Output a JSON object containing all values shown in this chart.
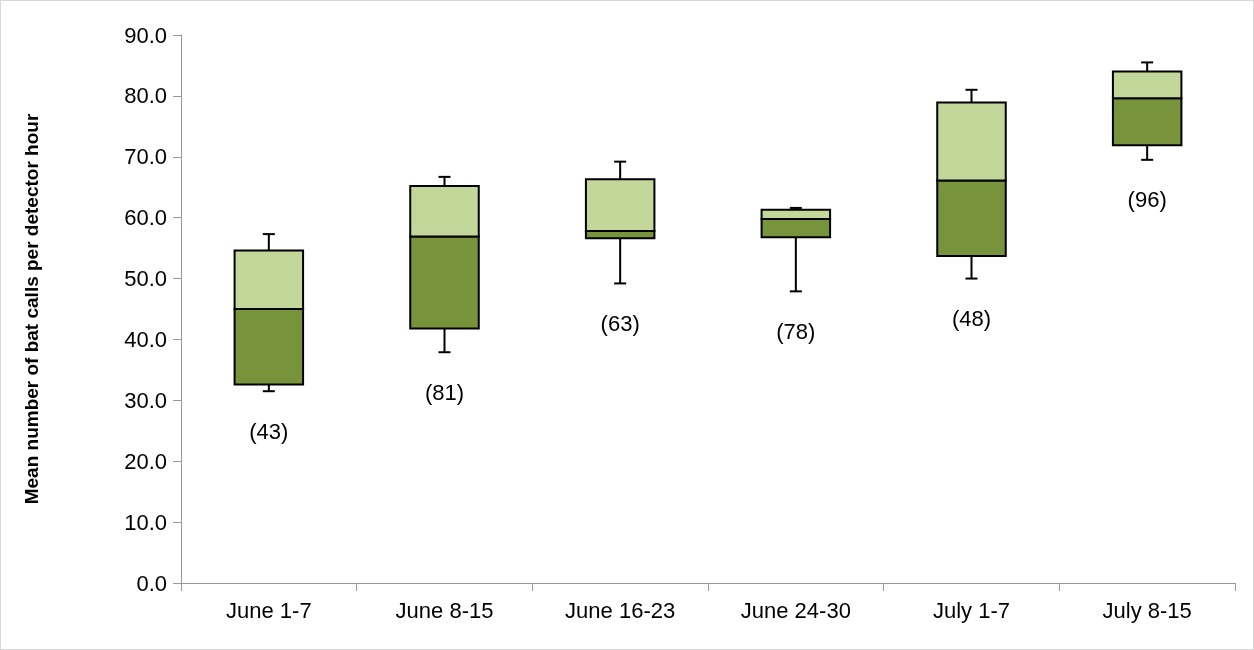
{
  "chart_data": {
    "type": "box",
    "ylabel": "Mean number of bat calls per detector hour",
    "categories": [
      "June 1-7",
      "June 8-15",
      "June 16-23",
      "June 24-30",
      "July 1-7",
      "July 8-15"
    ],
    "series": [
      {
        "color": "#c4d79b",
        "colors": [
          "#77933c",
          "#77933c",
          "#77933c",
          "#77933c",
          "#77933c",
          "#77933c"
        ],
        "boxes": [
          {
            "low": 31.5,
            "q1": 32.6,
            "median": 45.0,
            "q3": 54.6,
            "high": 57.3
          },
          {
            "low": 37.9,
            "q1": 41.8,
            "median": 56.9,
            "q3": 65.2,
            "high": 66.7
          },
          {
            "low": 49.2,
            "q1": 56.6,
            "median": 57.8,
            "q3": 66.3,
            "high": 69.2
          },
          {
            "low": 47.9,
            "q1": 56.8,
            "median": 59.8,
            "q3": 61.3,
            "high": 61.6
          },
          {
            "low": 50.0,
            "q1": 53.7,
            "median": 66.1,
            "q3": 78.9,
            "high": 81.0
          },
          {
            "low": 69.5,
            "q1": 71.9,
            "median": 79.6,
            "q3": 84.0,
            "high": 85.5
          }
        ]
      }
    ],
    "ylim": [
      0,
      90
    ],
    "yticks": [
      {
        "value": 0,
        "label": "0.0"
      },
      {
        "value": 10,
        "label": "10.0"
      },
      {
        "value": 20,
        "label": "20.0"
      },
      {
        "value": 30,
        "label": "30.0"
      },
      {
        "value": 40,
        "label": "40.0"
      },
      {
        "value": 50,
        "label": "50.0"
      },
      {
        "value": 60,
        "label": "60.0"
      },
      {
        "value": 70,
        "label": "70.0"
      },
      {
        "value": 80,
        "label": "80.0"
      },
      {
        "value": 90,
        "label": "90.0"
      }
    ],
    "grid": false,
    "annotations": [
      "(43)",
      "(81)",
      "(63)",
      "(78)",
      "(48)",
      "(96)"
    ]
  }
}
